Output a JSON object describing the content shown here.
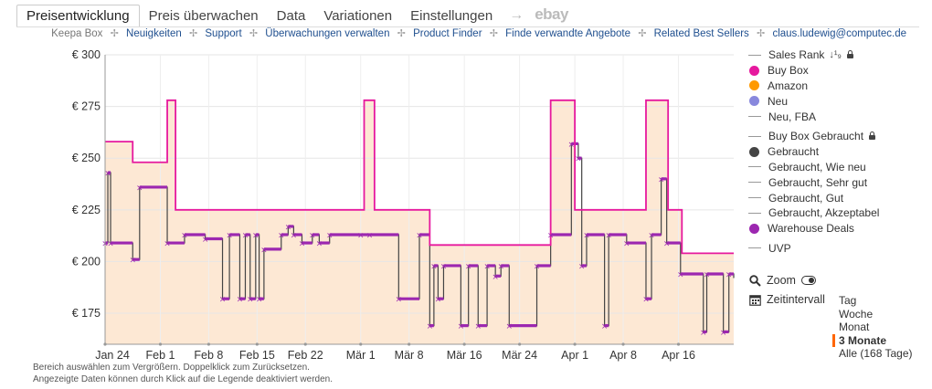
{
  "tabs": [
    {
      "label": "Preisentwicklung",
      "active": true
    },
    {
      "label": "Preis überwachen"
    },
    {
      "label": "Data"
    },
    {
      "label": "Variationen"
    },
    {
      "label": "Einstellungen"
    }
  ],
  "tab_arrow": "→",
  "tab_ebay": "ebay",
  "links": {
    "keepa_box": "Keepa Box",
    "items": [
      "Neuigkeiten",
      "Support",
      "Überwachungen verwalten",
      "Product Finder",
      "Finde verwandte Angebote",
      "Related Best Sellers"
    ],
    "email": "claus.ludewig@computec.de",
    "separator": "✢"
  },
  "legend": {
    "sales_rank": "Sales Rank",
    "sales_rank_glyph": "↓¹₉",
    "buy_box": "Buy Box",
    "amazon": "Amazon",
    "neu": "Neu",
    "neu_fba": "Neu, FBA",
    "buy_box_used": "Buy Box Gebraucht",
    "gebraucht": "Gebraucht",
    "wie_neu": "Gebraucht, Wie neu",
    "sehr_gut": "Gebraucht, Sehr gut",
    "gut": "Gebraucht, Gut",
    "akzeptabel": "Gebraucht, Akzeptabel",
    "warehouse": "Warehouse Deals",
    "uvp": "UVP"
  },
  "colors": {
    "buy_box": "#e6199e",
    "amazon": "#ff9900",
    "neu": "#8888dd",
    "gebraucht": "#444444",
    "warehouse": "#9c27b0",
    "area": "#fde8d4"
  },
  "controls": {
    "zoom_label": "Zoom",
    "zeitintervall_label": "Zeitintervall",
    "ranges": [
      "Tag",
      "Woche",
      "Monat",
      "3 Monate",
      "Alle (168 Tage)"
    ],
    "active_range": "3 Monate"
  },
  "hints": {
    "line1": "Bereich auswählen zum Vergrößern. Doppelklick zum Zurücksetzen.",
    "line2": "Angezeigte Daten können durch Klick auf die Legende deaktiviert werden."
  },
  "chart_data": {
    "type": "line",
    "ylim": [
      160,
      300
    ],
    "yticks": [
      175,
      200,
      225,
      250,
      275,
      300
    ],
    "ytick_labels": [
      "€ 175",
      "€ 200",
      "€ 225",
      "€ 250",
      "€ 275",
      "€ 300"
    ],
    "xlim": [
      0,
      91
    ],
    "xticks": [
      {
        "x": 0,
        "label": "Jan 24"
      },
      {
        "x": 8,
        "label": "Feb 1"
      },
      {
        "x": 15,
        "label": "Feb 8"
      },
      {
        "x": 22,
        "label": "Feb 15"
      },
      {
        "x": 29,
        "label": "Feb 22"
      },
      {
        "x": 37,
        "label": "Mär 1"
      },
      {
        "x": 44,
        "label": "Mär 8"
      },
      {
        "x": 52,
        "label": "Mär 16"
      },
      {
        "x": 60,
        "label": "Mär 24"
      },
      {
        "x": 68,
        "label": "Apr 1"
      },
      {
        "x": 75,
        "label": "Apr 8"
      },
      {
        "x": 83,
        "label": "Apr 16"
      }
    ],
    "series": [
      {
        "name": "Buy Box",
        "step": [
          [
            0,
            258
          ],
          [
            4,
            258
          ],
          [
            4,
            248
          ],
          [
            9,
            248
          ],
          [
            9,
            278
          ],
          [
            10.2,
            278
          ],
          [
            10.2,
            225
          ],
          [
            37.5,
            225
          ],
          [
            37.5,
            278
          ],
          [
            39,
            278
          ],
          [
            39,
            225
          ],
          [
            47,
            225
          ],
          [
            47,
            208
          ],
          [
            64.5,
            208
          ],
          [
            64.5,
            278
          ],
          [
            68,
            278
          ],
          [
            68,
            225
          ],
          [
            78.3,
            225
          ],
          [
            78.3,
            278
          ],
          [
            81.5,
            278
          ],
          [
            81.5,
            225
          ],
          [
            83.5,
            225
          ],
          [
            83.5,
            204
          ],
          [
            91,
            204
          ]
        ]
      },
      {
        "name": "Warehouse Deals",
        "step": [
          [
            0,
            209
          ],
          [
            0.4,
            243
          ],
          [
            0.8,
            209
          ],
          [
            4,
            201
          ],
          [
            5,
            236
          ],
          [
            9,
            209
          ],
          [
            11.5,
            213
          ],
          [
            14.5,
            211
          ],
          [
            17,
            182
          ],
          [
            18,
            213
          ],
          [
            19.5,
            182
          ],
          [
            20.3,
            213
          ],
          [
            21,
            182
          ],
          [
            21.8,
            213
          ],
          [
            22.3,
            182
          ],
          [
            23,
            206
          ],
          [
            25.5,
            213
          ],
          [
            26.5,
            217
          ],
          [
            27.3,
            213
          ],
          [
            28.5,
            209
          ],
          [
            30,
            213
          ],
          [
            31,
            209
          ],
          [
            32.5,
            213
          ],
          [
            37,
            213
          ],
          [
            38.3,
            213
          ],
          [
            42.5,
            182
          ],
          [
            45.5,
            213
          ],
          [
            47,
            169
          ],
          [
            47.6,
            198
          ],
          [
            48.2,
            182
          ],
          [
            49,
            198
          ],
          [
            51.5,
            169
          ],
          [
            52.6,
            198
          ],
          [
            54,
            169
          ],
          [
            55.3,
            198
          ],
          [
            56.5,
            193
          ],
          [
            57.3,
            198
          ],
          [
            58.5,
            169
          ],
          [
            62.5,
            198
          ],
          [
            64.5,
            213
          ],
          [
            67.5,
            257
          ],
          [
            68.5,
            250
          ],
          [
            69,
            198
          ],
          [
            69.7,
            213
          ],
          [
            72.3,
            169
          ],
          [
            72.9,
            213
          ],
          [
            75.5,
            209
          ],
          [
            78.3,
            182
          ],
          [
            79.1,
            213
          ],
          [
            80.5,
            240
          ],
          [
            81.3,
            209
          ],
          [
            83.3,
            194
          ],
          [
            86.6,
            166
          ],
          [
            87.1,
            194
          ],
          [
            89.5,
            166
          ],
          [
            90.3,
            194
          ],
          [
            91,
            192
          ]
        ]
      }
    ]
  }
}
